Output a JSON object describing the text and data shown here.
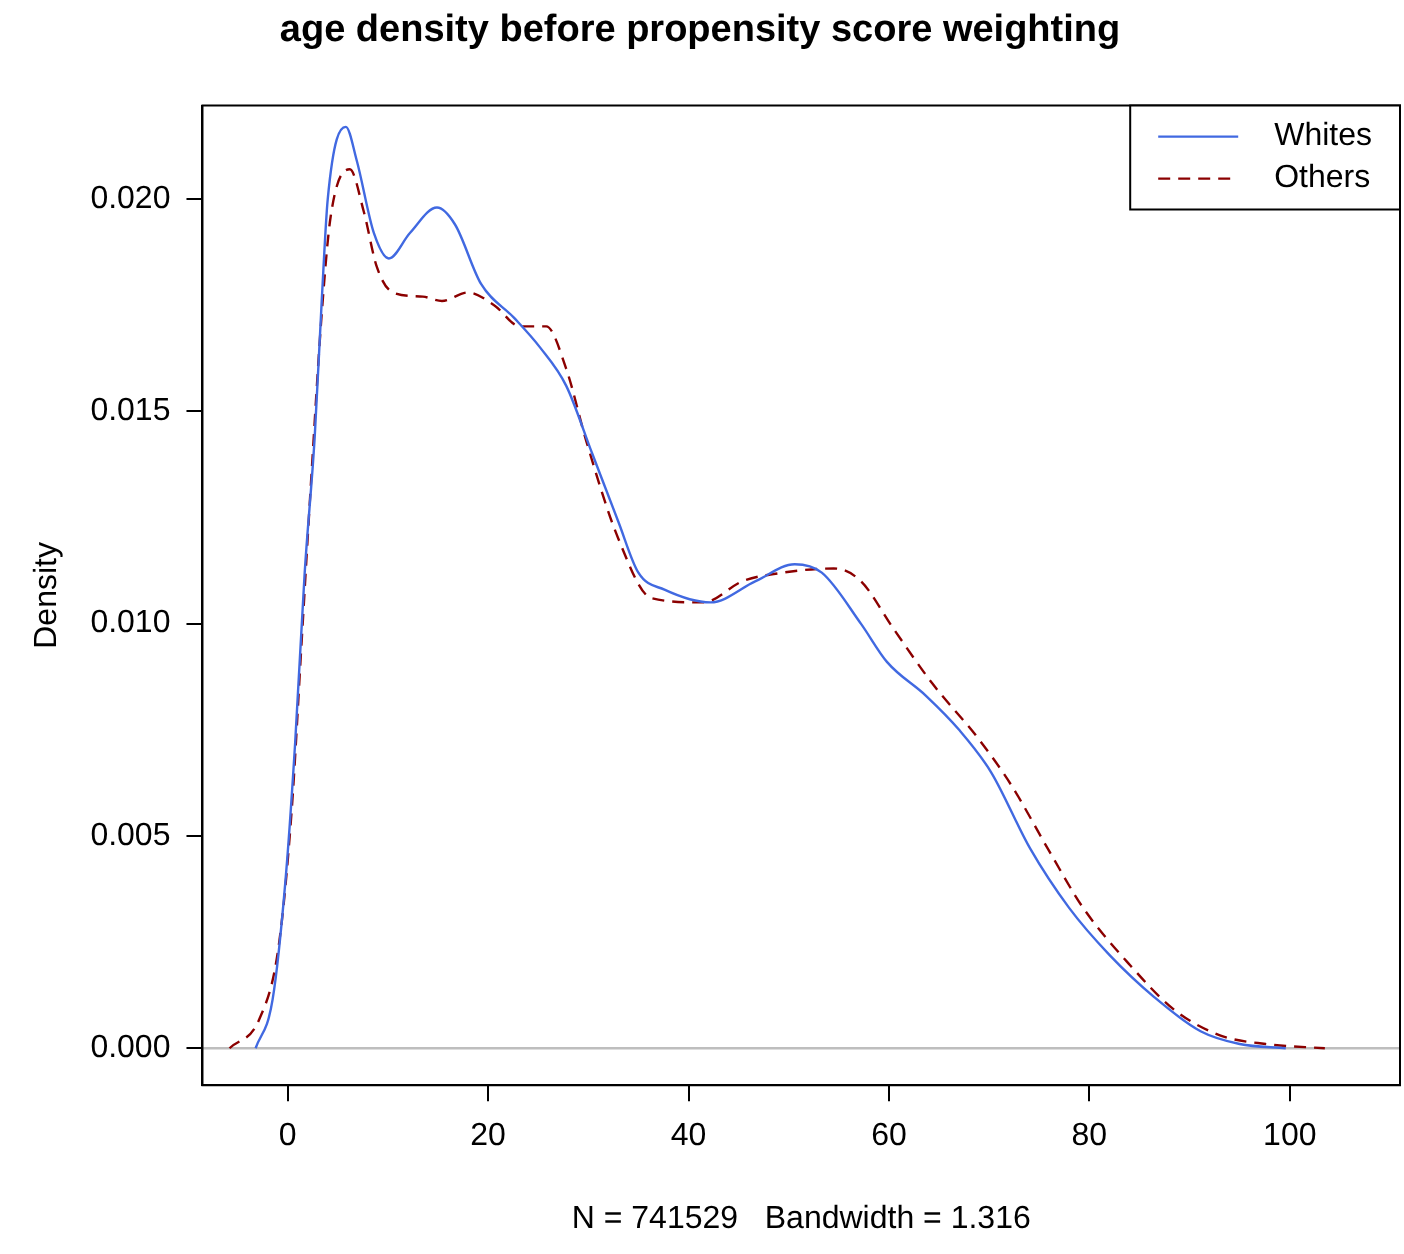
{
  "chart_data": {
    "type": "line",
    "title": "age density before propensity score weighting",
    "xlabel": "N = 741529   Bandwidth = 1.316",
    "ylabel": "Density",
    "xlim": [
      -8.5,
      111
    ],
    "xticks": [
      0,
      20,
      40,
      60,
      80,
      100
    ],
    "ylim": [
      -0.00087,
      0.0222
    ],
    "yticks": [
      {
        "value": 0,
        "label": "0.000"
      },
      {
        "value": 0.005,
        "label": "0.005"
      },
      {
        "value": 0.01,
        "label": "0.010"
      },
      {
        "value": 0.015,
        "label": "0.015"
      },
      {
        "value": 0.02,
        "label": "0.020"
      }
    ],
    "grid": false,
    "legend": "top right",
    "marker": "none",
    "ref_lines": [
      {
        "axis": "y",
        "value": 0,
        "color": "#bebebe"
      }
    ],
    "series": [
      {
        "name": "Whites",
        "color": "#4169e1",
        "line_style": "solid",
        "x": [
          -3.2,
          -1.5,
          -0.2,
          0.75,
          1.7,
          2.7,
          3.4,
          4.0,
          5.8,
          6.9,
          8.6,
          10.1,
          12.2,
          14.9,
          16.7,
          19.3,
          22.6,
          25.2,
          27.8,
          30.4,
          33.0,
          35.0,
          37.6,
          42.2,
          46.7,
          50.6,
          53.3,
          57.2,
          59.8,
          63.7,
          67.0,
          70.2,
          74.1,
          78.0,
          82.0,
          86.5,
          91.1,
          95.0,
          99.6
        ],
        "values": [
          0,
          0.00115,
          0.004,
          0.0072,
          0.0112,
          0.0144,
          0.0176,
          0.02,
          0.0217,
          0.0209,
          0.0192,
          0.0186,
          0.0192,
          0.0198,
          0.0194,
          0.018,
          0.0172,
          0.0165,
          0.0156,
          0.014,
          0.0124,
          0.0112,
          0.0108,
          0.0105,
          0.011,
          0.0114,
          0.0112,
          0.01,
          0.0091,
          0.0083,
          0.0075,
          0.0065,
          0.0047,
          0.0033,
          0.0022,
          0.0012,
          0.0004,
          0.0001,
          0
        ]
      },
      {
        "name": "Others",
        "color": "#8b0000",
        "line_style": "dashed",
        "x": [
          -5.8,
          -2.8,
          -0.9,
          0.4,
          1.4,
          2.4,
          3.4,
          4.3,
          6.2,
          7.6,
          8.9,
          10.5,
          13.5,
          15.4,
          18.0,
          20.6,
          23.2,
          25.8,
          27.8,
          29.8,
          33.0,
          36.3,
          41.5,
          45.4,
          49.4,
          54.5,
          57.2,
          60.4,
          64.3,
          68.9,
          72.2,
          76.1,
          79.4,
          83.9,
          88.5,
          93.1,
          97.6,
          103.5
        ],
        "values": [
          0,
          0.0007,
          0.0024,
          0.0056,
          0.0096,
          0.0136,
          0.0173,
          0.0196,
          0.0207,
          0.0197,
          0.0184,
          0.0178,
          0.0177,
          0.0176,
          0.0178,
          0.0175,
          0.017,
          0.017,
          0.016,
          0.0143,
          0.012,
          0.0106,
          0.0105,
          0.011,
          0.0112,
          0.0113,
          0.011,
          0.0099,
          0.0086,
          0.0073,
          0.0062,
          0.0046,
          0.0033,
          0.002,
          0.0009,
          0.0003,
          0.0001,
          0
        ]
      }
    ]
  }
}
